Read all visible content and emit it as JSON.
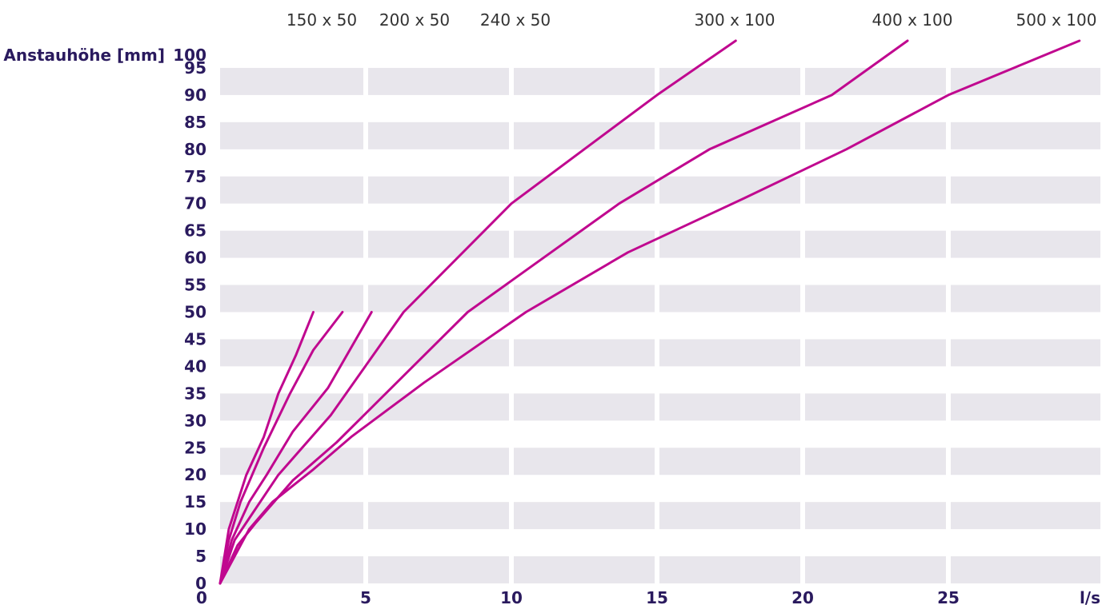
{
  "chart_data": {
    "type": "line",
    "title": "",
    "ylabel": "Anstauhöhe [mm]",
    "xunit": "l/s",
    "xlim": [
      0,
      30
    ],
    "ylim": [
      0,
      100
    ],
    "x_ticks": [
      0,
      5,
      10,
      15,
      20,
      25
    ],
    "y_ticks": [
      0,
      5,
      10,
      15,
      20,
      25,
      30,
      35,
      40,
      45,
      50,
      55,
      60,
      65,
      70,
      75,
      80,
      85,
      90,
      95,
      100
    ],
    "grid": "alternating horizontal bands",
    "colors": {
      "series": "#c0088f",
      "band": "#e8e6ec",
      "text": "#2a1a5e",
      "label": "#333333"
    },
    "series": [
      {
        "name": "150 x 50",
        "points": [
          [
            0,
            0
          ],
          [
            0.3,
            10
          ],
          [
            0.9,
            20
          ],
          [
            1.5,
            27
          ],
          [
            2.0,
            35
          ],
          [
            2.6,
            42
          ],
          [
            3.2,
            50
          ]
        ]
      },
      {
        "name": "200 x 50",
        "points": [
          [
            0,
            0
          ],
          [
            0.3,
            8
          ],
          [
            0.7,
            15
          ],
          [
            1.5,
            25
          ],
          [
            2.4,
            35
          ],
          [
            3.2,
            43
          ],
          [
            4.2,
            50
          ]
        ]
      },
      {
        "name": "240 x 50",
        "points": [
          [
            0,
            0
          ],
          [
            0.4,
            8
          ],
          [
            1.0,
            15
          ],
          [
            1.6,
            20
          ],
          [
            2.5,
            28
          ],
          [
            3.7,
            36
          ],
          [
            5.2,
            50
          ]
        ]
      },
      {
        "name": "300 x 100",
        "points": [
          [
            0,
            0
          ],
          [
            0.5,
            8
          ],
          [
            1.0,
            12
          ],
          [
            2.0,
            20
          ],
          [
            3.8,
            31
          ],
          [
            6.3,
            50
          ],
          [
            10.0,
            70
          ],
          [
            15.0,
            90
          ],
          [
            17.7,
            100
          ]
        ]
      },
      {
        "name": "400 x 100",
        "points": [
          [
            0,
            0
          ],
          [
            0.6,
            7
          ],
          [
            1.2,
            11
          ],
          [
            2.5,
            19
          ],
          [
            4.0,
            26
          ],
          [
            8.5,
            50
          ],
          [
            13.7,
            70
          ],
          [
            16.8,
            80
          ],
          [
            21.0,
            90
          ],
          [
            23.6,
            100
          ]
        ]
      },
      {
        "name": "500 x 100",
        "points": [
          [
            0,
            0
          ],
          [
            0.5,
            5
          ],
          [
            1.0,
            10
          ],
          [
            1.8,
            15
          ],
          [
            3.2,
            21
          ],
          [
            4.5,
            27
          ],
          [
            7.0,
            37
          ],
          [
            10.5,
            50
          ],
          [
            14.0,
            61
          ],
          [
            18.0,
            71
          ],
          [
            21.5,
            80
          ],
          [
            25.0,
            90
          ],
          [
            29.5,
            100
          ]
        ]
      }
    ]
  }
}
